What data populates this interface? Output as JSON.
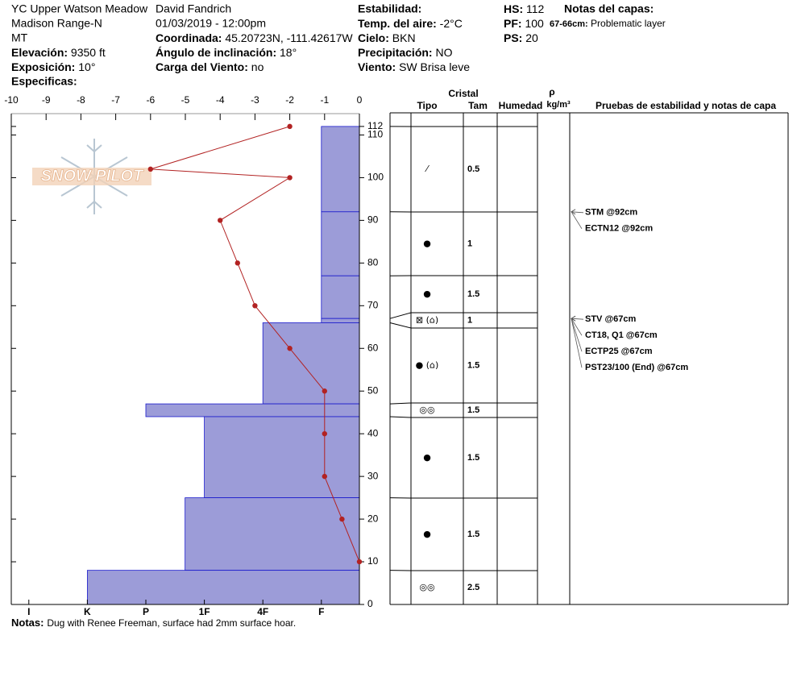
{
  "header": {
    "site": "YC Upper Watson Meadow",
    "range": "Madison Range-N",
    "state": "MT",
    "elevation": {
      "label": "Elevación:",
      "value": "9350 ft"
    },
    "aspect": {
      "label": "Exposición:",
      "value": "10°"
    },
    "specifics": "Especificas:",
    "observer": "David Fandrich",
    "datetime": "01/03/2019 - 12:00pm",
    "coords": {
      "label": "Coordinada:",
      "value": "45.20723N, -111.42617W"
    },
    "slope": {
      "label": "Ángulo de inclinación:",
      "value": "18°"
    },
    "wind_load": {
      "label": "Carga del Viento:",
      "value": "no"
    },
    "stability": "Estabilidad:",
    "air_temp": {
      "label": "Temp. del aire:",
      "value": "-2°C"
    },
    "sky": {
      "label": "Cielo:",
      "value": "BKN"
    },
    "precip": {
      "label": "Precipitación:",
      "value": "NO"
    },
    "wind": {
      "label": "Viento:",
      "value": "SW Brisa leve"
    },
    "hs": {
      "label": "HS:",
      "value": 112
    },
    "pf": {
      "label": "PF:",
      "value": 100
    },
    "ps": {
      "label": "PS:",
      "value": 20
    },
    "layer_notes": {
      "label": "Notas del capas:",
      "items": [
        {
          "label": "67-66cm:",
          "value": "Problematic layer"
        }
      ]
    }
  },
  "watermark": "SNOW PILOT",
  "chart_data": {
    "type": "snow-profile",
    "xlim": [
      -10,
      0
    ],
    "xticks": [
      -10,
      -9,
      -8,
      -7,
      -6,
      -5,
      -4,
      -3,
      -2,
      -1,
      0
    ],
    "ylim": [
      0,
      115
    ],
    "yticks": [
      0,
      10,
      20,
      30,
      40,
      50,
      60,
      70,
      80,
      90,
      100,
      110,
      112
    ],
    "hardness_lim": [
      6.3,
      0.35
    ],
    "hardness_ticks": [
      {
        "value": 6,
        "label": "I"
      },
      {
        "value": 5,
        "label": "K"
      },
      {
        "value": 4,
        "label": "P"
      },
      {
        "value": 3,
        "label": "1F"
      },
      {
        "value": 2,
        "label": "4F"
      },
      {
        "value": 1,
        "label": "F"
      }
    ],
    "layer_color": "#9c9cd8",
    "temperature": {
      "color": "#b22222",
      "depth": [
        112,
        102,
        100,
        90,
        80,
        70,
        60,
        50,
        40,
        30,
        20,
        10
      ],
      "values": [
        -2,
        -6,
        -2,
        -4,
        -3.5,
        -3,
        -2,
        -1,
        -1,
        -1,
        -0.5,
        0
      ]
    },
    "layers": [
      {
        "top": 112,
        "bottom": 92,
        "hardness": 1,
        "grain": "⁄",
        "size": 0.5
      },
      {
        "top": 92,
        "bottom": 77,
        "hardness": 1,
        "grain": "●",
        "size": 1
      },
      {
        "top": 77,
        "bottom": 67,
        "hardness": 1,
        "grain": "●",
        "size": 1.5
      },
      {
        "top": 67,
        "bottom": 66,
        "hardness": 1,
        "grain": "⊠ (⌂)",
        "size": 1
      },
      {
        "top": 66,
        "bottom": 47,
        "hardness": 2,
        "grain": "● (⌂)",
        "size": 1.5
      },
      {
        "top": 47,
        "bottom": 44,
        "hardness": 4,
        "grain": "◎◎",
        "size": 1.5
      },
      {
        "top": 44,
        "bottom": 25,
        "hardness": 3,
        "grain": "●",
        "size": 1.5
      },
      {
        "top": 25,
        "bottom": 8,
        "hardness": 3.33,
        "grain": "●",
        "size": 1.5
      },
      {
        "top": 8,
        "bottom": 0,
        "hardness": 5,
        "grain": "◎◎",
        "size": 2.5
      }
    ]
  },
  "table": {
    "crystal": "Cristal",
    "type": "Tipo",
    "size": "Tam",
    "moisture": "Humedad",
    "rho": "ρ",
    "density_unit": "kg/m³",
    "tests": "Pruebas de estabilidad y notas de capa"
  },
  "tests": [
    {
      "text": "STM @92cm",
      "depth": 92
    },
    {
      "text": "ECTN12 @92cm",
      "depth": 92
    },
    {
      "text": "STV @67cm",
      "depth": 67
    },
    {
      "text": "CT18, Q1 @67cm",
      "depth": 67
    },
    {
      "text": "ECTP25 @67cm",
      "depth": 67
    },
    {
      "text": "PST23/100 (End) @67cm",
      "depth": 67
    }
  ],
  "notes": {
    "label": "Notas:",
    "value": "Dug with Renee Freeman, surface had 2mm surface hoar."
  }
}
